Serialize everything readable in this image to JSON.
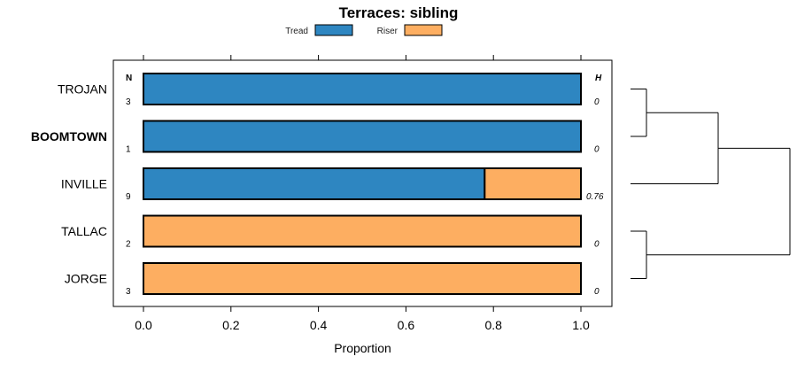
{
  "chart_data": {
    "type": "bar",
    "stacked": true,
    "orientation": "horizontal",
    "title": "Terraces: sibling",
    "xlabel": "Proportion",
    "xlim": [
      0,
      1
    ],
    "xticks": [
      "0.0",
      "0.2",
      "0.4",
      "0.6",
      "0.8",
      "1.0"
    ],
    "xtick_values": [
      0,
      0.2,
      0.4,
      0.6,
      0.8,
      1.0
    ],
    "legend": {
      "position": "top",
      "entries": [
        {
          "name": "Tread",
          "color": "#2e86c1"
        },
        {
          "name": "Riser",
          "color": "#fdae61"
        }
      ]
    },
    "n_header": "N",
    "h_header": "H",
    "categories": [
      "TROJAN",
      "BOOMTOWN",
      "INVILLE",
      "TALLAC",
      "JORGE"
    ],
    "bold_category": "BOOMTOWN",
    "n_values": [
      "3",
      "1",
      "9",
      "2",
      "3"
    ],
    "h_values": [
      "0",
      "0",
      "0.76",
      "0",
      "0"
    ],
    "series": [
      {
        "name": "Tread",
        "color": "#2e86c1",
        "values": [
          1.0,
          1.0,
          0.78,
          0.0,
          0.0
        ]
      },
      {
        "name": "Riser",
        "color": "#fdae61",
        "values": [
          0.0,
          0.0,
          0.22,
          1.0,
          1.0
        ]
      }
    ],
    "dendrogram": {
      "merges": [
        {
          "a": 0,
          "b": 1,
          "height": 0.1
        },
        {
          "a": 3,
          "b": 4,
          "height": 0.1
        },
        {
          "a": "m0",
          "b": 2,
          "height": 0.55
        },
        {
          "a": "m2",
          "b": "m1",
          "height": 1.0
        }
      ]
    }
  }
}
